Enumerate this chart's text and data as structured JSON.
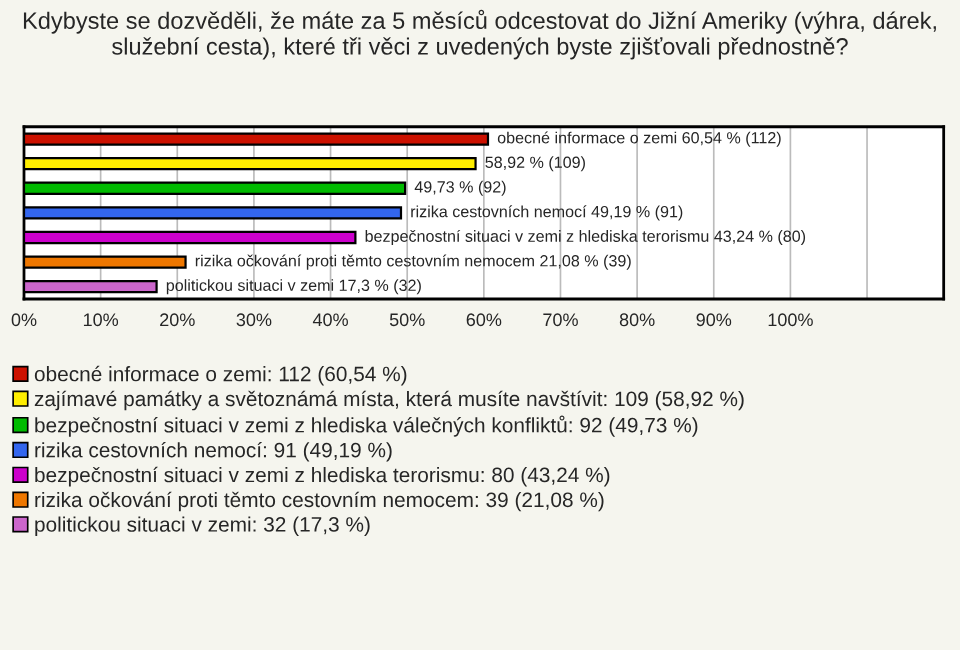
{
  "chart_data": {
    "type": "bar",
    "orientation": "horizontal",
    "title": "Kdybyste se dozvěděli, že máte za 5 měsíců odcestovat do Jižní Ameriky (výhra, dárek, služební cesta), které tři věci z uvedených byste zjišťovali přednostně?",
    "categories": [
      null,
      null,
      null,
      null,
      null,
      null,
      null
    ],
    "series": [
      {
        "name": "obecné informace o zemi: 112 (60,54 %)",
        "color": "#cc1100",
        "values": [
          60.54,
          null,
          null,
          null,
          null,
          null,
          null
        ],
        "value_labels": [
          "obecné informace o zemi 60,54 % (112)",
          null,
          null,
          null,
          null,
          null,
          null
        ]
      },
      {
        "name": "zajímavé památky a světoznámá místa, která musíte navštívit: 109 (58,92 %)",
        "color": "#ffee00",
        "values": [
          null,
          58.92,
          null,
          null,
          null,
          null,
          null
        ],
        "value_labels": [
          null,
          "58,92 % (109)",
          null,
          null,
          null,
          null,
          null
        ]
      },
      {
        "name": "bezpečnostní situaci v zemi z hlediska válečných konfliktů: 92 (49,73 %)",
        "color": "#00bb00",
        "values": [
          null,
          null,
          49.73,
          null,
          null,
          null,
          null
        ],
        "value_labels": [
          null,
          null,
          "49,73 % (92)",
          null,
          null,
          null,
          null
        ]
      },
      {
        "name": "rizika cestovních nemocí: 91 (49,19 %)",
        "color": "#3366ee",
        "values": [
          null,
          null,
          null,
          49.19,
          null,
          null,
          null
        ],
        "value_labels": [
          null,
          null,
          null,
          "rizika cestovních nemocí 49,19 % (91)",
          null,
          null,
          null
        ]
      },
      {
        "name": "bezpečnostní situaci v zemi z hlediska terorismu: 80 (43,24 %)",
        "color": "#cc00cc",
        "values": [
          null,
          null,
          null,
          null,
          43.24,
          null,
          null
        ],
        "value_labels": [
          null,
          null,
          null,
          null,
          "bezpečnostní situaci v zemi z hlediska terorismu 43,24 % (80)",
          null,
          null
        ]
      },
      {
        "name": "rizika očkování proti těmto cestovním nemocem: 39 (21,08 %)",
        "color": "#ee7700",
        "values": [
          null,
          null,
          null,
          null,
          null,
          21.08,
          null
        ],
        "value_labels": [
          null,
          null,
          null,
          null,
          null,
          "rizika očkování proti těmto cestovním nemocem 21,08 % (39)",
          null
        ]
      },
      {
        "name": "politickou situaci v zemi: 32 (17,3 %)",
        "color": "#cc66cc",
        "values": [
          null,
          null,
          null,
          null,
          null,
          null,
          17.3
        ],
        "value_labels": [
          null,
          null,
          null,
          null,
          null,
          null,
          "politickou situaci v zemi 17,3 % (32)"
        ]
      }
    ],
    "xlim": [
      0,
      120
    ],
    "xticks": [
      {
        "value": 0,
        "label": "0%"
      },
      {
        "value": 10,
        "label": "10%"
      },
      {
        "value": 20,
        "label": "20%"
      },
      {
        "value": 30,
        "label": "30%"
      },
      {
        "value": 40,
        "label": "40%"
      },
      {
        "value": 50,
        "label": "50%"
      },
      {
        "value": 60,
        "label": "60%"
      },
      {
        "value": 70,
        "label": "70%"
      },
      {
        "value": 80,
        "label": "80%"
      },
      {
        "value": 90,
        "label": "90%"
      },
      {
        "value": 100,
        "label": "100%"
      },
      {
        "value": 110,
        "label": null
      },
      {
        "value": 120,
        "label": null
      }
    ],
    "grid": "x",
    "legend": "bottom",
    "tick_labels": "x"
  }
}
